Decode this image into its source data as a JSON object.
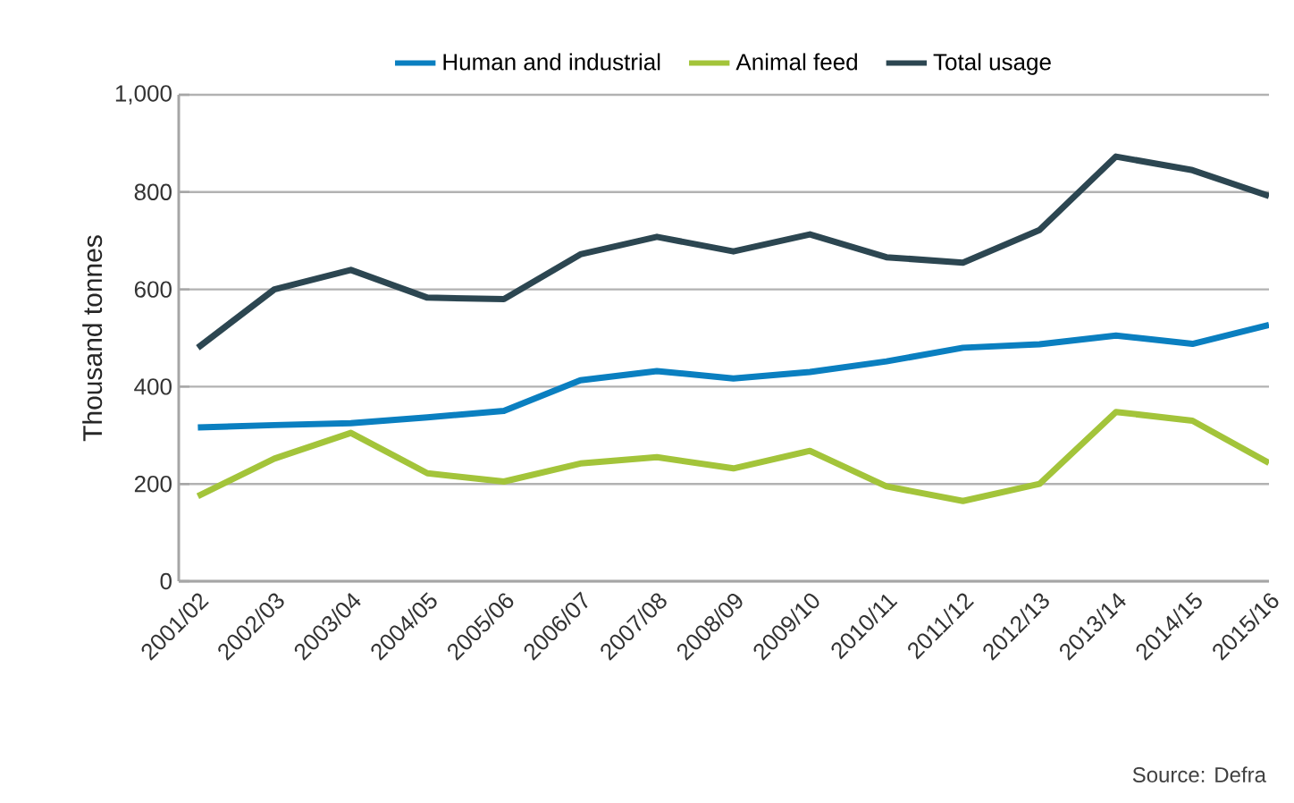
{
  "chart_data": {
    "type": "line",
    "ylabel": "Thousand tonnes",
    "categories": [
      "2001/02",
      "2002/03",
      "2003/04",
      "2004/05",
      "2005/06",
      "2006/07",
      "2007/08",
      "2008/09",
      "2009/10",
      "2010/11",
      "2011/12",
      "2012/13",
      "2013/14",
      "2014/15",
      "2015/16"
    ],
    "series": [
      {
        "name": "Human and industrial",
        "color": "#0a7fc0",
        "values": [
          316,
          321,
          325,
          337,
          350,
          413,
          432,
          417,
          430,
          452,
          480,
          487,
          505,
          488,
          527
        ]
      },
      {
        "name": "Animal feed",
        "color": "#a3c43a",
        "values": [
          175,
          252,
          305,
          222,
          205,
          242,
          255,
          232,
          268,
          195,
          165,
          200,
          348,
          330,
          243
        ]
      },
      {
        "name": "Total usage",
        "color": "#2c4651",
        "values": [
          480,
          600,
          640,
          583,
          580,
          672,
          708,
          678,
          713,
          666,
          655,
          722,
          873,
          845,
          792
        ]
      }
    ],
    "ylim": [
      0,
      1000
    ],
    "yticks": [
      0,
      200,
      400,
      600,
      800,
      {
        "value": 1000,
        "label": "1,000"
      }
    ],
    "grid": "y",
    "legend": "top",
    "marker": "none",
    "line_style": "solid",
    "annotations": [
      "Source: Defra"
    ]
  }
}
